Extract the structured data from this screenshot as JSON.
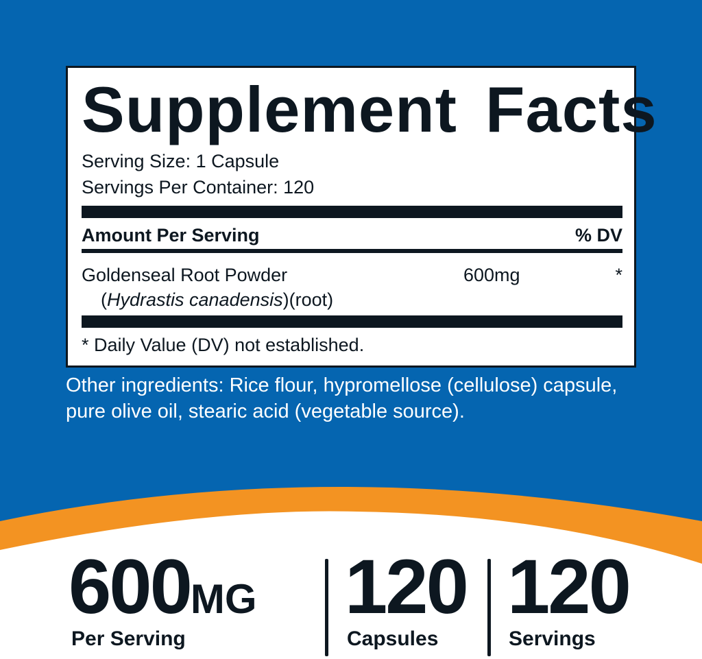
{
  "label": {
    "title": "Supplement Facts",
    "serving_size": "Serving Size: 1 Capsule",
    "servings_per_container": "Servings Per Container: 120",
    "amount_header": "Amount Per Serving",
    "dv_header": "% DV",
    "ingredient": {
      "name": "Goldenseal Root Powder",
      "latin_open": "(",
      "latin": "Hydrastis canadensis",
      "latin_close": ")(root)",
      "amount": "600mg",
      "dv": "*"
    },
    "footnote": "* Daily Value (DV) not established."
  },
  "other_ingredients": "Other ingredients: Rice flour, hypromellose (cellulose) capsule, pure olive oil, stearic acid (vegetable source).",
  "stats": [
    {
      "value": "600",
      "unit": "MG",
      "caption": "Per Serving"
    },
    {
      "value": "120",
      "caption": "Capsules"
    },
    {
      "value": "120",
      "caption": "Servings"
    }
  ],
  "colors": {
    "blue": "#0565b0",
    "orange": "#f39322",
    "dark": "#0d1720",
    "white": "#ffffff"
  }
}
